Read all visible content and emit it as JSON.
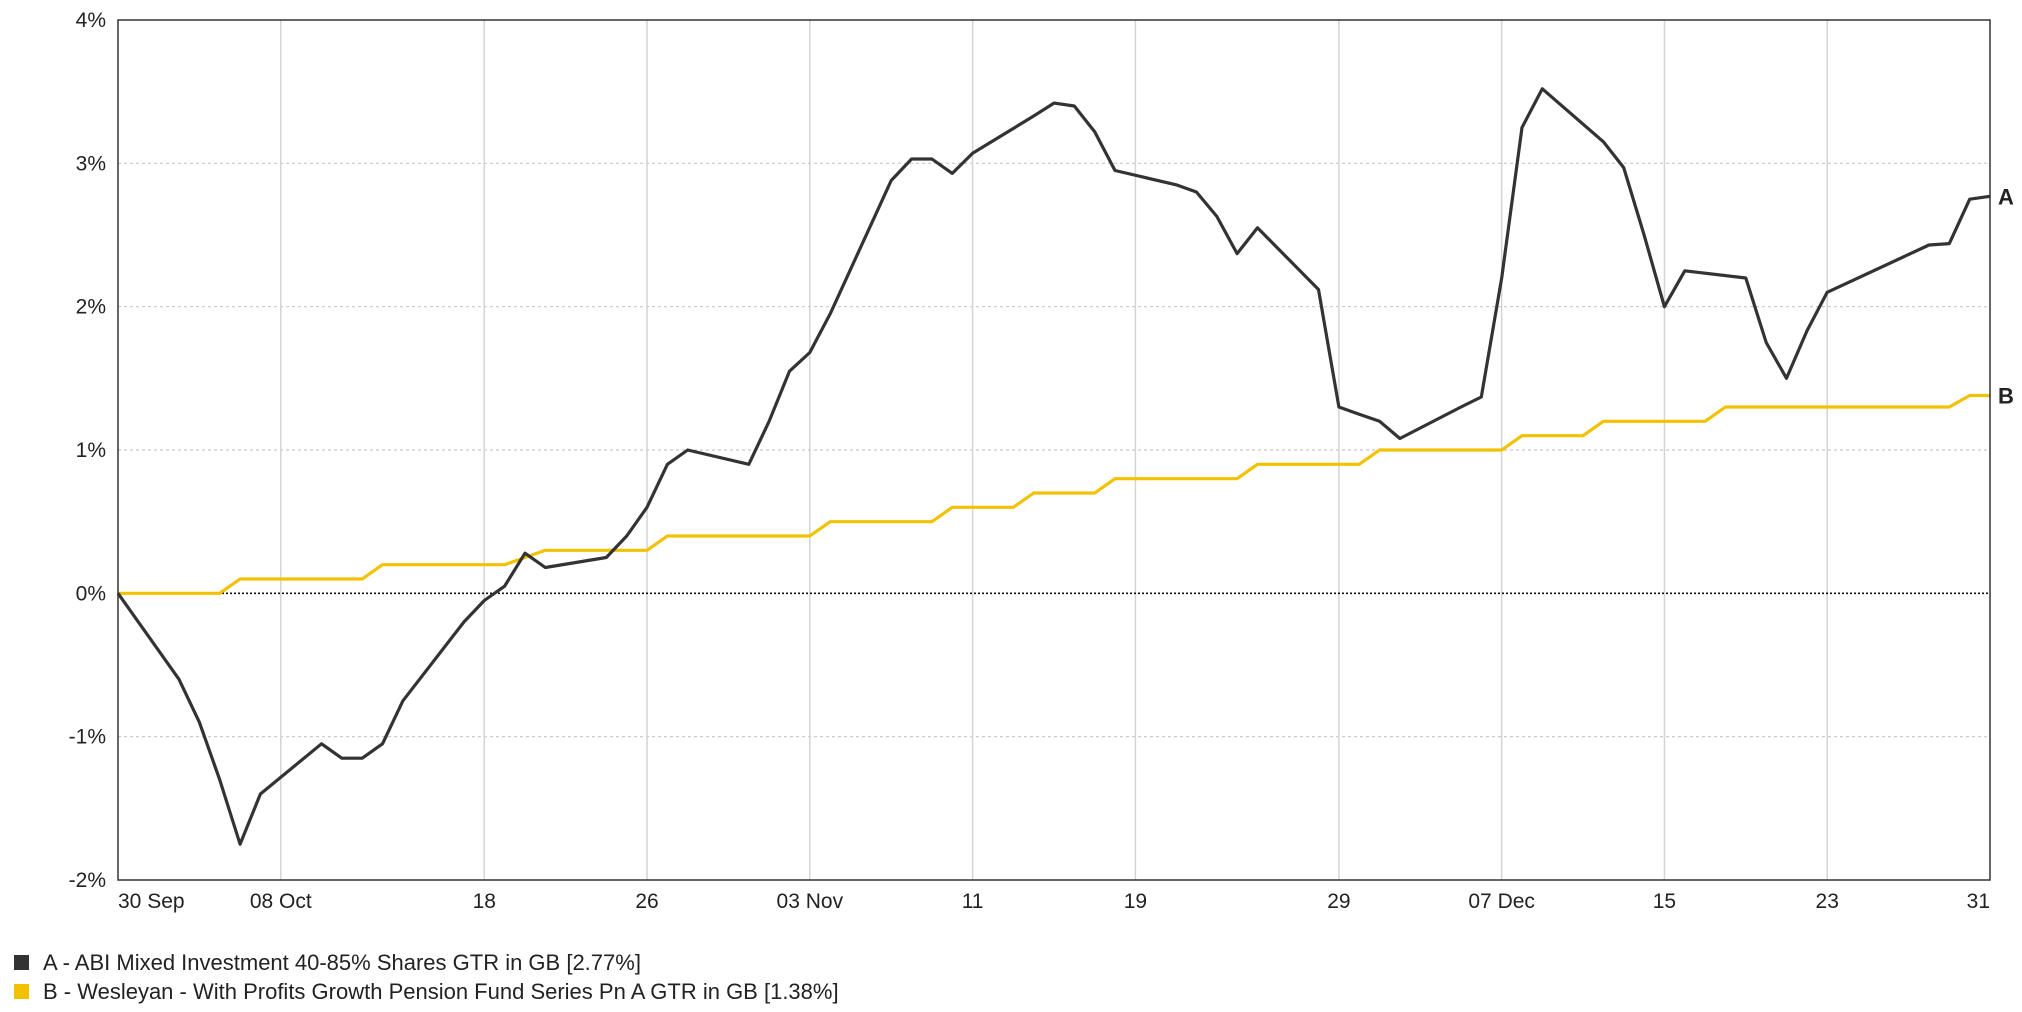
{
  "chart_data": {
    "type": "line",
    "x_tick_labels": [
      "30 Sep",
      "08 Oct",
      "18",
      "26",
      "03 Nov",
      "11",
      "19",
      "29",
      "07 Dec",
      "15",
      "23",
      "31"
    ],
    "x_tick_dates": [
      "2022-09-30",
      "2022-10-08",
      "2022-10-18",
      "2022-10-26",
      "2022-11-03",
      "2022-11-11",
      "2022-11-19",
      "2022-11-29",
      "2022-12-07",
      "2022-12-15",
      "2022-12-23",
      "2022-12-31"
    ],
    "xlim": [
      "2022-09-30",
      "2022-12-31"
    ],
    "y_ticks": [
      4,
      3,
      2,
      1,
      0,
      -1,
      -2
    ],
    "y_tick_labels": [
      "4%",
      "3%",
      "2%",
      "1%",
      "0%",
      "-1%",
      "-2%"
    ],
    "ylim": [
      -2,
      4
    ],
    "grid": true,
    "legend_position": "bottom-left",
    "series": [
      {
        "name": "A - ABI Mixed Investment 40-85% Shares GTR in GB [2.77%]",
        "end_label": "A",
        "color": "#333333",
        "x": [
          "2022-09-30",
          "2022-10-03",
          "2022-10-04",
          "2022-10-05",
          "2022-10-06",
          "2022-10-07",
          "2022-10-10",
          "2022-10-11",
          "2022-10-12",
          "2022-10-13",
          "2022-10-14",
          "2022-10-17",
          "2022-10-18",
          "2022-10-19",
          "2022-10-20",
          "2022-10-21",
          "2022-10-24",
          "2022-10-25",
          "2022-10-26",
          "2022-10-27",
          "2022-10-28",
          "2022-10-31",
          "2022-11-01",
          "2022-11-02",
          "2022-11-03",
          "2022-11-04",
          "2022-11-07",
          "2022-11-08",
          "2022-11-09",
          "2022-11-10",
          "2022-11-11",
          "2022-11-14",
          "2022-11-15",
          "2022-11-16",
          "2022-11-17",
          "2022-11-18",
          "2022-11-21",
          "2022-11-22",
          "2022-11-23",
          "2022-11-24",
          "2022-11-25",
          "2022-11-28",
          "2022-11-29",
          "2022-11-30",
          "2022-12-01",
          "2022-12-02",
          "2022-12-05",
          "2022-12-06",
          "2022-12-07",
          "2022-12-08",
          "2022-12-09",
          "2022-12-12",
          "2022-12-13",
          "2022-12-14",
          "2022-12-15",
          "2022-12-16",
          "2022-12-19",
          "2022-12-20",
          "2022-12-21",
          "2022-12-22",
          "2022-12-23",
          "2022-12-28",
          "2022-12-29",
          "2022-12-30",
          "2022-12-31"
        ],
        "values": [
          0.0,
          -0.6,
          -0.9,
          -1.3,
          -1.75,
          -1.4,
          -1.05,
          -1.15,
          -1.15,
          -1.05,
          -0.75,
          -0.2,
          -0.05,
          0.05,
          0.28,
          0.18,
          0.25,
          0.4,
          0.6,
          0.9,
          1.0,
          0.9,
          1.2,
          1.55,
          1.68,
          1.95,
          2.88,
          3.03,
          3.03,
          2.93,
          3.07,
          3.33,
          3.42,
          3.4,
          3.22,
          2.95,
          2.85,
          2.8,
          2.63,
          2.37,
          2.55,
          2.12,
          1.3,
          1.25,
          1.2,
          1.08,
          1.3,
          1.37,
          2.2,
          3.25,
          3.52,
          3.15,
          2.97,
          2.5,
          2.0,
          2.25,
          2.2,
          1.75,
          1.5,
          1.83,
          2.1,
          2.43,
          2.44,
          2.75,
          2.77
        ]
      },
      {
        "name": "B - Wesleyan - With Profits Growth Pension Fund Series Pn A GTR in GB [1.38%]",
        "end_label": "B",
        "color": "#f2c200",
        "x": [
          "2022-09-30",
          "2022-10-05",
          "2022-10-06",
          "2022-10-12",
          "2022-10-13",
          "2022-10-19",
          "2022-10-21",
          "2022-10-26",
          "2022-10-27",
          "2022-11-03",
          "2022-11-04",
          "2022-11-09",
          "2022-11-10",
          "2022-11-13",
          "2022-11-14",
          "2022-11-17",
          "2022-11-18",
          "2022-11-24",
          "2022-11-25",
          "2022-11-30",
          "2022-12-01",
          "2022-12-07",
          "2022-12-08",
          "2022-12-11",
          "2022-12-12",
          "2022-12-17",
          "2022-12-18",
          "2022-12-29",
          "2022-12-30",
          "2022-12-31"
        ],
        "values": [
          0.0,
          0.0,
          0.1,
          0.1,
          0.2,
          0.2,
          0.3,
          0.3,
          0.4,
          0.4,
          0.5,
          0.5,
          0.6,
          0.6,
          0.7,
          0.7,
          0.8,
          0.8,
          0.9,
          0.9,
          1.0,
          1.0,
          1.1,
          1.1,
          1.2,
          1.2,
          1.3,
          1.3,
          1.38,
          1.38
        ]
      }
    ]
  }
}
